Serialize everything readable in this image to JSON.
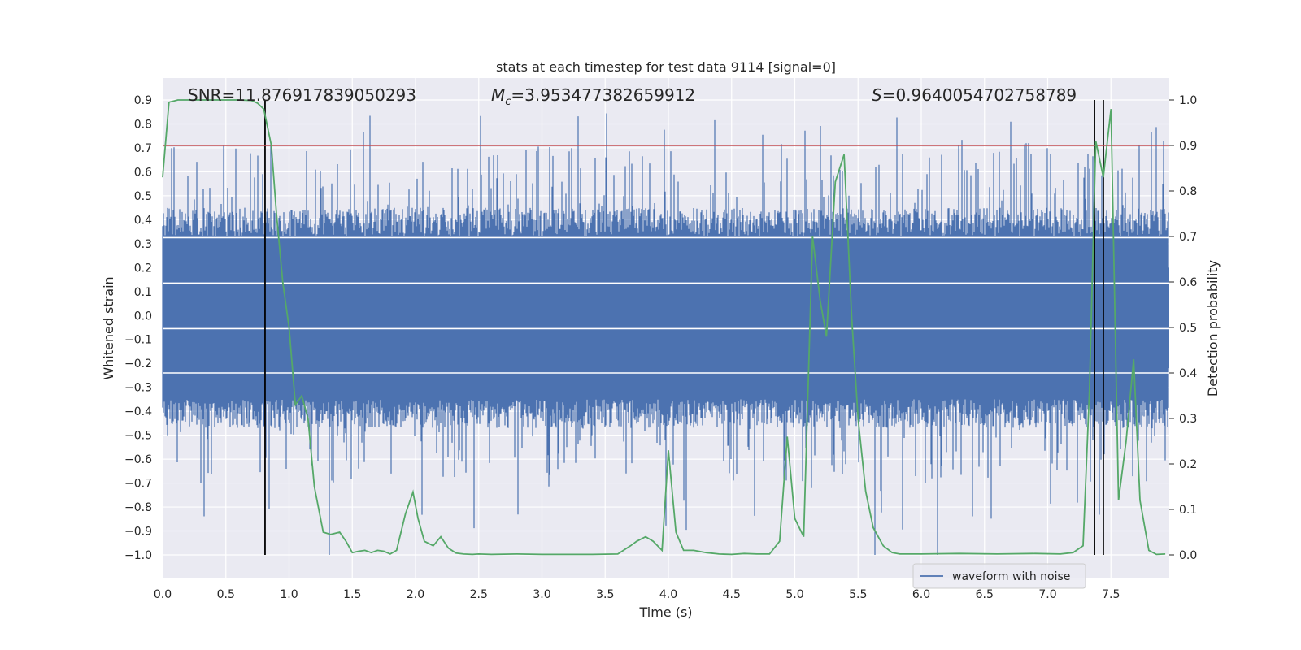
{
  "chart_data": {
    "type": "line",
    "title": "stats at each timestep for test data 9114 [signal=0]",
    "xlabel": "Time (s)",
    "ylabel": "Whitened strain",
    "ylabel_right": "Detection probability",
    "xlim": [
      0.0,
      8.0
    ],
    "ylim": [
      -1.0,
      0.9
    ],
    "ylim_right": [
      0.0,
      1.0
    ],
    "xticks": [
      "0.0",
      "0.5",
      "1.0",
      "1.5",
      "2.0",
      "2.5",
      "3.0",
      "3.5",
      "4.0",
      "4.5",
      "5.0",
      "5.5",
      "6.0",
      "6.5",
      "7.0",
      "7.5"
    ],
    "xtick_values": [
      0.0,
      0.5,
      1.0,
      1.5,
      2.0,
      2.5,
      3.0,
      3.5,
      4.0,
      4.5,
      5.0,
      5.5,
      6.0,
      6.5,
      7.0,
      7.5
    ],
    "yticks": [
      "0.9",
      "0.8",
      "0.7",
      "0.6",
      "0.5",
      "0.4",
      "0.3",
      "0.2",
      "0.1",
      "0.0",
      "−0.1",
      "−0.2",
      "−0.3",
      "−0.4",
      "−0.5",
      "−0.6",
      "−0.7",
      "−0.8",
      "−0.9",
      "−1.0"
    ],
    "ytick_values": [
      0.9,
      0.8,
      0.7,
      0.6,
      0.5,
      0.4,
      0.3,
      0.2,
      0.1,
      0.0,
      -0.1,
      -0.2,
      -0.3,
      -0.4,
      -0.5,
      -0.6,
      -0.7,
      -0.8,
      -0.9,
      -1.0
    ],
    "yticks_right": [
      "1.0",
      "0.9",
      "0.8",
      "0.7",
      "0.6",
      "0.5",
      "0.4",
      "0.3",
      "0.2",
      "0.1",
      "0.0"
    ],
    "ytick_values_right": [
      1.0,
      0.9,
      0.8,
      0.7,
      0.6,
      0.5,
      0.4,
      0.3,
      0.2,
      0.1,
      0.0
    ],
    "annotations": {
      "snr": "SNR=11.876917839050293",
      "mc_symbol": "M",
      "mc_subscript": "c",
      "mc_value": "=3.953477382659912",
      "s_symbol": "S",
      "s_value": "=0.9640054702758789"
    },
    "legend": {
      "label": "waveform with noise",
      "position": "lower-right"
    },
    "threshold": {
      "value": 0.9,
      "axis": "right",
      "color": "#c44e52"
    },
    "vertical_lines": [
      0.81,
      7.37,
      7.44
    ],
    "series": [
      {
        "name": "waveform with noise",
        "axis": "left",
        "color": "#4c72b0",
        "style": "dense-noise",
        "typical_amplitude": 0.33,
        "min": -1.0,
        "max": 0.85
      },
      {
        "name": "detection probability",
        "axis": "right",
        "color": "#55a868",
        "x": [
          0.0,
          0.05,
          0.12,
          0.2,
          0.3,
          0.4,
          0.5,
          0.6,
          0.7,
          0.75,
          0.8,
          0.86,
          0.9,
          0.95,
          1.0,
          1.05,
          1.1,
          1.15,
          1.2,
          1.27,
          1.33,
          1.4,
          1.45,
          1.5,
          1.55,
          1.6,
          1.65,
          1.7,
          1.75,
          1.8,
          1.85,
          1.92,
          1.98,
          2.02,
          2.07,
          2.14,
          2.2,
          2.26,
          2.32,
          2.38,
          2.45,
          2.5,
          2.6,
          2.8,
          3.0,
          3.2,
          3.4,
          3.6,
          3.7,
          3.75,
          3.82,
          3.88,
          3.95,
          4.0,
          4.06,
          4.12,
          4.2,
          4.3,
          4.4,
          4.5,
          4.6,
          4.7,
          4.8,
          4.88,
          4.94,
          5.0,
          5.07,
          5.14,
          5.2,
          5.25,
          5.32,
          5.39,
          5.45,
          5.5,
          5.56,
          5.62,
          5.7,
          5.77,
          5.83,
          5.9,
          6.0,
          6.3,
          6.6,
          6.9,
          7.1,
          7.2,
          7.28,
          7.33,
          7.38,
          7.44,
          7.5,
          7.56,
          7.62,
          7.68,
          7.73,
          7.8,
          7.86,
          7.93
        ],
        "y": [
          0.83,
          0.995,
          1.0,
          1.0,
          1.0,
          1.0,
          1.0,
          1.0,
          0.999,
          0.993,
          0.98,
          0.9,
          0.75,
          0.6,
          0.5,
          0.33,
          0.35,
          0.3,
          0.15,
          0.05,
          0.045,
          0.05,
          0.03,
          0.005,
          0.008,
          0.01,
          0.005,
          0.01,
          0.008,
          0.002,
          0.01,
          0.09,
          0.138,
          0.08,
          0.03,
          0.02,
          0.04,
          0.015,
          0.004,
          0.002,
          0.001,
          0.002,
          0.001,
          0.002,
          0.001,
          0.001,
          0.001,
          0.002,
          0.02,
          0.03,
          0.04,
          0.03,
          0.01,
          0.23,
          0.05,
          0.01,
          0.01,
          0.005,
          0.002,
          0.001,
          0.003,
          0.002,
          0.002,
          0.03,
          0.26,
          0.08,
          0.04,
          0.7,
          0.56,
          0.48,
          0.82,
          0.88,
          0.52,
          0.3,
          0.14,
          0.06,
          0.02,
          0.005,
          0.002,
          0.002,
          0.002,
          0.003,
          0.002,
          0.003,
          0.002,
          0.005,
          0.02,
          0.36,
          0.91,
          0.83,
          0.98,
          0.12,
          0.25,
          0.43,
          0.12,
          0.01,
          0.001,
          0.002
        ]
      }
    ]
  }
}
